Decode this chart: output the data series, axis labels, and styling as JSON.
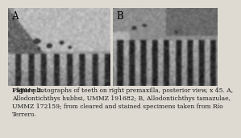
{
  "figure_label": "Figure 2.",
  "caption_main": "  SEM photographs of teeth on right premaxilla, posterior view, x 45. A,\nAllodontichthys hubbsi, UMMZ 191682; B, Allodontichthys tamazulae,\nUMMZ 172159; from cleared and stained specimens taken from Río\nTerrero.",
  "label_A": "A",
  "label_B": "B",
  "bg_color": "#dedad2",
  "text_color": "#1a1a1a",
  "caption_fontsize": 5.5,
  "label_fontsize": 8.5,
  "panel_a_bg": "#b8b4ac",
  "panel_b_bg": "#b0acA4"
}
